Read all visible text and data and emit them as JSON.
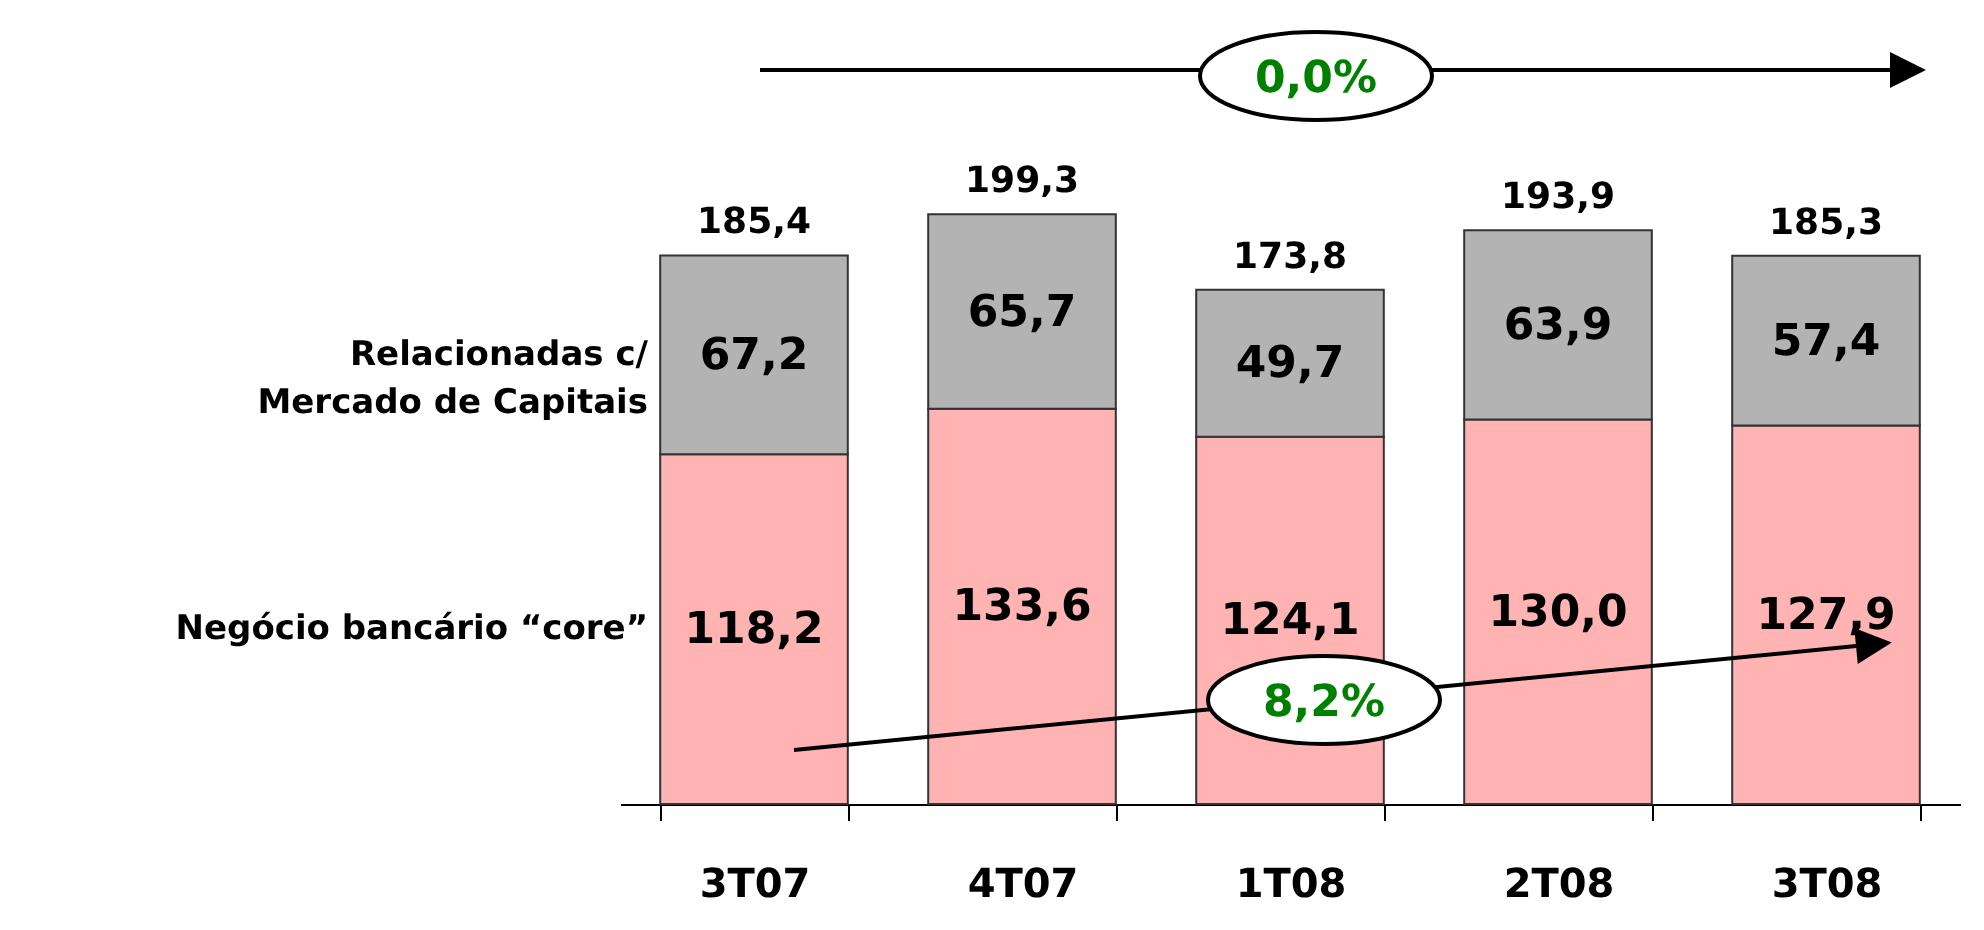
{
  "chart_data": {
    "type": "bar",
    "stacked": true,
    "categories": [
      "3T07",
      "4T07",
      "1T08",
      "2T08",
      "3T08"
    ],
    "series": [
      {
        "name": "Negócio bancário “core”",
        "color": "#ffb3b3",
        "values": [
          118.2,
          133.6,
          124.1,
          130.0,
          127.9
        ],
        "value_labels": [
          "118,2",
          "133,6",
          "124,1",
          "130,0",
          "127,9"
        ]
      },
      {
        "name": "Relacionadas c/\nMercado de Capitais",
        "color": "#b3b3b3",
        "values": [
          67.2,
          65.7,
          49.7,
          63.9,
          57.4
        ],
        "value_labels": [
          "67,2",
          "65,7",
          "49,7",
          "63,9",
          "57,4"
        ]
      }
    ],
    "totals": [
      "185,4",
      "199,3",
      "173,8",
      "193,9",
      "185,3"
    ],
    "annotations": [
      "0,0%",
      "8,2%"
    ]
  }
}
